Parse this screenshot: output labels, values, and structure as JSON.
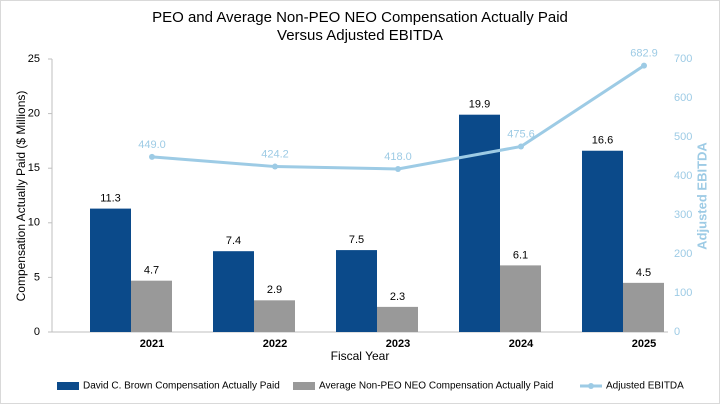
{
  "chart_data": {
    "type": "bar_line",
    "title": [
      "PEO and Average Non-PEO NEO Compensation Actually Paid",
      "Versus Adjusted EBITDA"
    ],
    "x_label": "Fiscal Year",
    "y_label": "Compensation Actually Paid ($ Millions)",
    "y2_label": "Adjusted EBITDA",
    "categories": [
      "2021",
      "2022",
      "2023",
      "2024",
      "2025"
    ],
    "series": [
      {
        "name": "David C. Brown Compensation Actually Paid",
        "color": "#0b4a8a",
        "type": "bar",
        "values": [
          11.3,
          7.4,
          7.5,
          19.9,
          16.6
        ]
      },
      {
        "name": "Average Non-PEO NEO Compensation Actually Paid",
        "color": "#999999",
        "type": "bar",
        "values": [
          4.7,
          2.9,
          2.3,
          6.1,
          4.5
        ]
      },
      {
        "name": "Adjusted EBITDA",
        "color": "#9dcbe5",
        "type": "line",
        "axis": "y2",
        "values": [
          449.0,
          424.2,
          418.0,
          475.6,
          682.9
        ],
        "value_labels": [
          "449.0",
          "424.2",
          "418.0",
          "475.6",
          "682.9"
        ]
      }
    ],
    "ylim": [
      0,
      25
    ],
    "yticks": [
      0,
      5,
      10,
      15,
      20,
      25
    ],
    "y2lim": [
      0,
      700
    ],
    "y2ticks": [
      0,
      100,
      200,
      300,
      400,
      500,
      600,
      700
    ],
    "grid": false,
    "legend": "bottom"
  }
}
